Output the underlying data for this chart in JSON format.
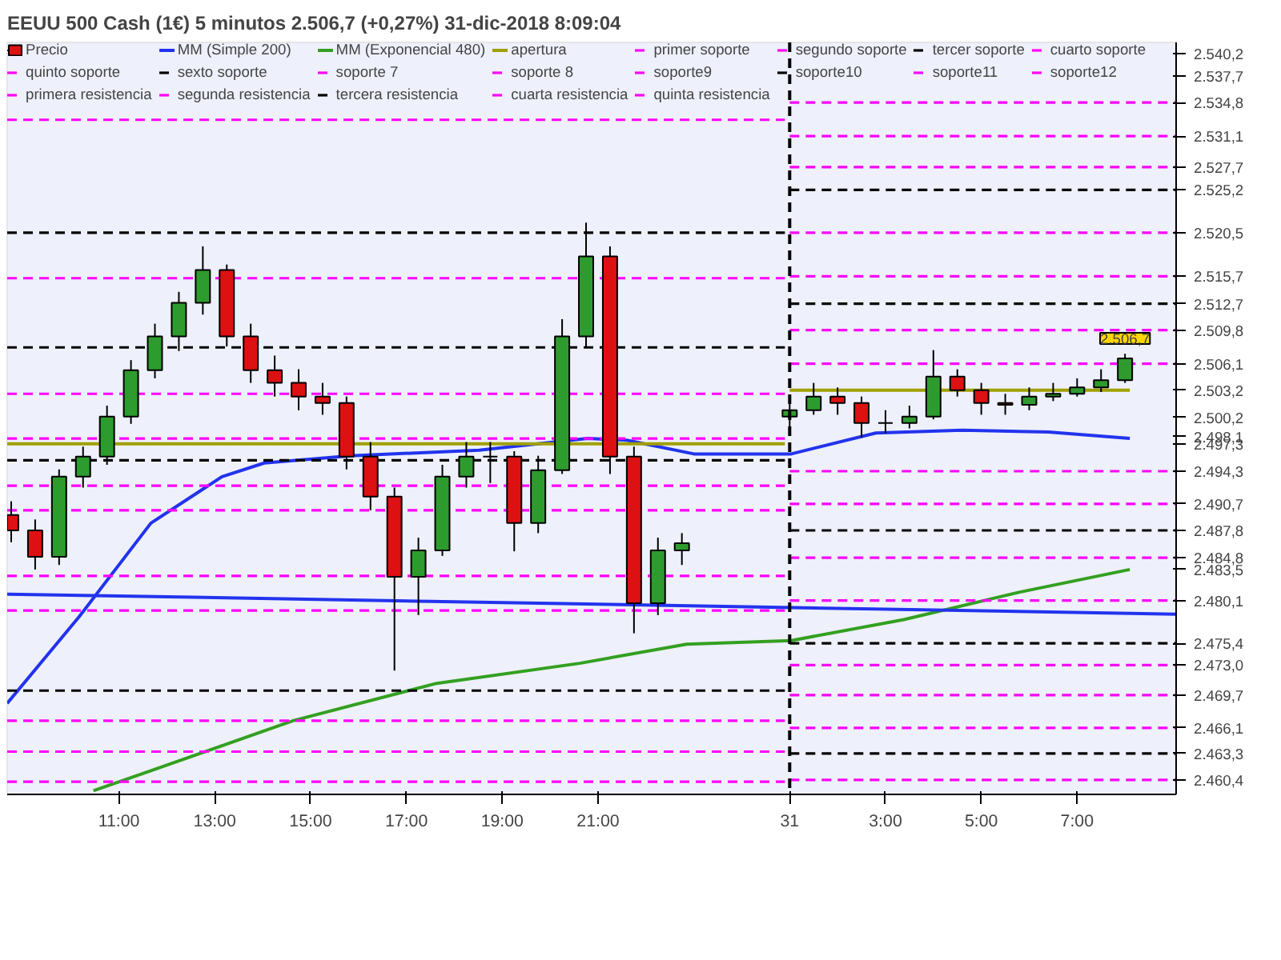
{
  "chart_data": {
    "type": "candlestick",
    "title": "EEUU 500 Cash (1€)   5 minutos   2.506,7 (+0,27%)   31-dic-2018 8:09:04",
    "legend": "top left",
    "grid": false,
    "annotations": [
      {
        "text": "2.506,7",
        "x": "2018-12-31T08:00",
        "y": 2506.7
      }
    ],
    "xlim": [
      "2018-12-30T08:40",
      "2018-12-31T09:04"
    ],
    "ylim": [
      2458.8,
      2541.4
    ],
    "xticks": [
      {
        "value": "2018-12-30T11:00",
        "label": "11:00"
      },
      {
        "value": "2018-12-30T13:00",
        "label": "13:00"
      },
      {
        "value": "2018-12-30T15:00",
        "label": "15:00"
      },
      {
        "value": "2018-12-30T17:00",
        "label": "17:00"
      },
      {
        "value": "2018-12-30T19:00",
        "label": "19:00"
      },
      {
        "value": "2018-12-30T21:00",
        "label": "21:00"
      },
      {
        "value": "2018-12-31T01:00",
        "label": "31"
      },
      {
        "value": "2018-12-31T03:00",
        "label": "3:00"
      },
      {
        "value": "2018-12-31T05:00",
        "label": "5:00"
      },
      {
        "value": "2018-12-31T07:00",
        "label": "7:00"
      }
    ],
    "yticks": [
      {
        "value": 2540.2,
        "label": "2.540,2"
      },
      {
        "value": 2537.7,
        "label": "2.537,7"
      },
      {
        "value": 2534.8,
        "label": "2.534,8"
      },
      {
        "value": 2531.1,
        "label": "2.531,1"
      },
      {
        "value": 2527.7,
        "label": "2.527,7"
      },
      {
        "value": 2525.2,
        "label": "2.525,2"
      },
      {
        "value": 2520.5,
        "label": "2.520,5"
      },
      {
        "value": 2515.7,
        "label": "2.515,7"
      },
      {
        "value": 2512.7,
        "label": "2.512,7"
      },
      {
        "value": 2509.8,
        "label": "2.509,8"
      },
      {
        "value": 2506.1,
        "label": "2.506,1"
      },
      {
        "value": 2503.2,
        "label": "2.503,2"
      },
      {
        "value": 2500.2,
        "label": "2.500,2"
      },
      {
        "value": 2498.1,
        "label": "2.498,1"
      },
      {
        "value": 2497.3,
        "label": "2.497,3"
      },
      {
        "value": 2494.3,
        "label": "2.494,3"
      },
      {
        "value": 2490.7,
        "label": "2.490,7"
      },
      {
        "value": 2487.8,
        "label": "2.487,8"
      },
      {
        "value": 2484.8,
        "label": "2.484,8"
      },
      {
        "value": 2483.5,
        "label": "2.483,5"
      },
      {
        "value": 2480.1,
        "label": "2.480,1"
      },
      {
        "value": 2475.4,
        "label": "2.475,4"
      },
      {
        "value": 2473.0,
        "label": "2.473,0"
      },
      {
        "value": 2469.7,
        "label": "2.469,7"
      },
      {
        "value": 2466.1,
        "label": "2.466,1"
      },
      {
        "value": 2463.3,
        "label": "2.463,3"
      },
      {
        "value": 2460.4,
        "label": "2.460,4"
      }
    ],
    "ref_lines": [
      {
        "axis": "x",
        "value": "2018-12-31T01:00",
        "color": "#000000",
        "line_style": "dashed"
      }
    ],
    "x": [
      "2018-12-30T08:45",
      "2018-12-30T09:15",
      "2018-12-30T09:45",
      "2018-12-30T10:15",
      "2018-12-30T10:45",
      "2018-12-30T11:15",
      "2018-12-30T11:45",
      "2018-12-30T12:15",
      "2018-12-30T12:45",
      "2018-12-30T13:15",
      "2018-12-30T13:45",
      "2018-12-30T14:15",
      "2018-12-30T14:45",
      "2018-12-30T15:15",
      "2018-12-30T15:45",
      "2018-12-30T16:15",
      "2018-12-30T16:45",
      "2018-12-30T17:15",
      "2018-12-30T17:45",
      "2018-12-30T18:15",
      "2018-12-30T18:45",
      "2018-12-30T19:15",
      "2018-12-30T19:45",
      "2018-12-30T20:15",
      "2018-12-30T20:45",
      "2018-12-30T21:15",
      "2018-12-30T21:45",
      "2018-12-30T22:15",
      "2018-12-30T22:45",
      "2018-12-31T01:00",
      "2018-12-31T01:30",
      "2018-12-31T02:00",
      "2018-12-31T02:30",
      "2018-12-31T03:00",
      "2018-12-31T03:30",
      "2018-12-31T04:00",
      "2018-12-31T04:30",
      "2018-12-31T05:00",
      "2018-12-31T05:30",
      "2018-12-31T06:00",
      "2018-12-31T06:30",
      "2018-12-31T07:00",
      "2018-12-31T07:30",
      "2018-12-31T08:00"
    ],
    "series": [
      {
        "name": "Precio",
        "color": "#000000",
        "ohlc": [
          [
            2489.5,
            2491.0,
            2486.5,
            2487.8
          ],
          [
            2487.8,
            2489.0,
            2483.5,
            2484.9
          ],
          [
            2484.9,
            2494.5,
            2484.0,
            2493.7
          ],
          [
            2493.7,
            2497.0,
            2492.5,
            2495.9
          ],
          [
            2495.9,
            2501.5,
            2495.0,
            2500.3
          ],
          [
            2500.3,
            2506.5,
            2499.5,
            2505.4
          ],
          [
            2505.4,
            2510.5,
            2504.5,
            2509.1
          ],
          [
            2509.1,
            2514.0,
            2507.5,
            2512.8
          ],
          [
            2512.8,
            2519.0,
            2511.5,
            2516.4
          ],
          [
            2516.4,
            2517.0,
            2508.0,
            2509.1
          ],
          [
            2509.1,
            2510.5,
            2504.0,
            2505.4
          ],
          [
            2505.4,
            2507.0,
            2502.5,
            2504.0
          ],
          [
            2504.0,
            2505.5,
            2501.0,
            2502.5
          ],
          [
            2502.5,
            2504.0,
            2500.5,
            2501.8
          ],
          [
            2501.8,
            2502.5,
            2494.5,
            2495.9
          ],
          [
            2495.9,
            2497.5,
            2490.0,
            2491.5
          ],
          [
            2491.5,
            2492.5,
            2472.4,
            2482.7
          ],
          [
            2482.7,
            2487.0,
            2478.5,
            2485.6
          ],
          [
            2485.6,
            2495.0,
            2485.0,
            2493.7
          ],
          [
            2493.7,
            2497.5,
            2492.5,
            2495.9
          ],
          [
            2495.9,
            2497.5,
            2493.0,
            2495.9
          ],
          [
            2495.9,
            2496.5,
            2485.5,
            2488.6
          ],
          [
            2488.6,
            2496.0,
            2487.5,
            2494.4
          ],
          [
            2494.4,
            2511.0,
            2494.0,
            2509.1
          ],
          [
            2509.1,
            2521.6,
            2508.0,
            2517.9
          ],
          [
            2517.9,
            2519.0,
            2494.0,
            2495.9
          ],
          [
            2495.9,
            2497.0,
            2476.5,
            2479.8
          ],
          [
            2479.8,
            2487.0,
            2478.5,
            2485.6
          ],
          [
            2485.6,
            2487.5,
            2484.0,
            2486.4
          ],
          [
            2500.3,
            2502.0,
            2499.0,
            2501.0
          ],
          [
            2501.0,
            2504.0,
            2500.5,
            2502.5
          ],
          [
            2502.5,
            2503.5,
            2500.5,
            2501.8
          ],
          [
            2501.8,
            2502.5,
            2498.0,
            2499.6
          ],
          [
            2499.6,
            2501.0,
            2498.5,
            2499.6
          ],
          [
            2499.6,
            2501.5,
            2499.0,
            2500.3
          ],
          [
            2500.3,
            2507.6,
            2500.0,
            2504.7
          ],
          [
            2504.7,
            2505.5,
            2502.5,
            2503.2
          ],
          [
            2503.2,
            2504.0,
            2500.5,
            2501.8
          ],
          [
            2501.8,
            2502.8,
            2500.5,
            2501.6
          ],
          [
            2501.6,
            2503.5,
            2501.0,
            2502.5
          ],
          [
            2502.5,
            2504.0,
            2502.0,
            2502.8
          ],
          [
            2502.8,
            2504.5,
            2502.5,
            2503.5
          ],
          [
            2503.5,
            2505.5,
            2503.0,
            2504.3
          ],
          [
            2504.3,
            2507.2,
            2504.0,
            2506.7
          ]
        ]
      },
      {
        "name": "MM (Simple 200)",
        "type": "line",
        "color": "#2233ee",
        "line_style": "solid",
        "x": [
          "2018-12-30T08:40",
          "2018-12-30T10:10",
          "2018-12-30T11:40",
          "2018-12-30T13:09",
          "2018-12-30T14:02",
          "2018-12-30T15:50",
          "2018-12-30T18:31",
          "2018-12-30T20:47",
          "2018-12-30T21:36",
          "2018-12-30T23:00",
          "2018-12-31T01:02",
          "2018-12-31T02:48",
          "2018-12-31T04:36",
          "2018-12-31T06:24",
          "2018-12-31T08:06"
        ],
        "values": [
          2468.8,
          2478.3,
          2488.6,
          2493.7,
          2495.2,
          2496.0,
          2496.6,
          2497.9,
          2497.7,
          2496.2,
          2496.2,
          2498.5,
          2498.8,
          2498.6,
          2497.9
        ]
      },
      {
        "name": "MM (Exponencial 480)",
        "type": "line",
        "color": "#33a020",
        "line_style": "solid",
        "x": [
          "2018-12-30T10:28",
          "2018-12-30T11:40",
          "2018-12-30T14:38",
          "2018-12-30T17:38",
          "2018-12-30T20:37",
          "2018-12-30T22:51",
          "2018-12-31T01:02",
          "2018-12-31T03:23",
          "2018-12-31T05:47",
          "2018-12-31T08:06"
        ],
        "values": [
          2459.2,
          2461.4,
          2466.9,
          2471.0,
          2473.2,
          2475.3,
          2475.7,
          2478.0,
          2481.0,
          2483.5
        ]
      },
      {
        "name": "apertura",
        "type": "line",
        "color": "#a0a000",
        "line_style": "solid",
        "x": [
          "2018-12-30T08:40",
          "2018-12-31T00:54",
          "2018-12-31T00:57",
          "2018-12-31T01:00",
          "2018-12-31T08:06"
        ],
        "values": [
          2497.3,
          2497.3,
          null,
          2503.2,
          2503.2
        ]
      },
      {
        "name": "primer soporte",
        "type": "line",
        "color": "#ff00ff",
        "line_style": "dashed",
        "x": [
          "2018-12-30T08:40",
          "2018-12-31T00:54",
          "2018-12-31T00:57",
          "2018-12-31T01:00",
          "2018-12-31T09:04"
        ],
        "values": [
          2482.8,
          2482.8,
          null,
          2494.3,
          2494.3
        ]
      },
      {
        "name": "segundo soporte",
        "type": "line",
        "color": "#ff00ff",
        "line_style": "dashed",
        "x": [
          "2018-12-30T08:40",
          "2018-12-31T00:54",
          "2018-12-31T00:57",
          "2018-12-31T01:00",
          "2018-12-31T09:04"
        ],
        "values": [
          2479.0,
          2479.0,
          null,
          2490.7,
          2490.7
        ]
      },
      {
        "name": "tercer soporte",
        "type": "line",
        "color": "#000000",
        "line_style": "dashed",
        "x": [
          "2018-12-30T08:40",
          "2018-12-31T00:54",
          "2018-12-31T00:57",
          "2018-12-31T01:00",
          "2018-12-31T09:04"
        ],
        "values": [
          2470.2,
          2470.2,
          null,
          2487.8,
          2487.8
        ]
      },
      {
        "name": "cuarto soporte",
        "type": "line",
        "color": "#ff00ff",
        "line_style": "dashed",
        "x": [
          "2018-12-30T08:40",
          "2018-12-31T00:54",
          "2018-12-31T00:57",
          "2018-12-31T01:00",
          "2018-12-31T09:04"
        ],
        "values": [
          2466.9,
          2466.9,
          null,
          2484.8,
          2484.8
        ]
      },
      {
        "name": "quinto soporte",
        "type": "line",
        "color": "#ff00ff",
        "line_style": "dashed",
        "x": [
          "2018-12-30T08:40",
          "2018-12-31T00:54",
          "2018-12-31T00:57",
          "2018-12-31T01:00",
          "2018-12-31T09:04"
        ],
        "values": [
          2463.5,
          2463.5,
          null,
          2480.1,
          2480.1
        ]
      },
      {
        "name": "sexto soporte",
        "type": "line",
        "color": "#000000",
        "line_style": "dashed",
        "x": [
          "2018-12-31T01:00",
          "2018-12-31T09:04"
        ],
        "values": [
          2475.4,
          2475.4
        ]
      },
      {
        "name": "soporte 7",
        "type": "line",
        "color": "#ff00ff",
        "line_style": "dashed",
        "x": [
          "2018-12-31T01:00",
          "2018-12-31T09:04"
        ],
        "values": [
          2473.0,
          2473.0
        ]
      },
      {
        "name": "soporte 8",
        "type": "line",
        "color": "#ff00ff",
        "line_style": "dashed",
        "x": [
          "2018-12-31T01:00",
          "2018-12-31T09:04"
        ],
        "values": [
          2469.7,
          2469.7
        ]
      },
      {
        "name": "soporte9",
        "type": "line",
        "color": "#ff00ff",
        "line_style": "dashed",
        "x": [
          "2018-12-31T01:00",
          "2018-12-31T09:04"
        ],
        "values": [
          2466.1,
          2466.1
        ]
      },
      {
        "name": "soporte10",
        "type": "line",
        "color": "#000000",
        "line_style": "dashed",
        "x": [
          "2018-12-31T01:00",
          "2018-12-31T09:04"
        ],
        "values": [
          2463.3,
          2463.3
        ]
      },
      {
        "name": "soporte11",
        "type": "line",
        "color": "#ff00ff",
        "line_style": "dashed",
        "x": [
          "2018-12-31T01:00",
          "2018-12-31T09:04"
        ],
        "values": [
          2460.4,
          2460.4
        ]
      },
      {
        "name": "soporte12",
        "type": "line",
        "color": "#ff00ff",
        "line_style": "dashed",
        "x": [
          "2018-12-30T08:40",
          "2018-12-31T00:54"
        ],
        "values": [
          2460.2,
          2460.2
        ]
      },
      {
        "name": "primera resistencia",
        "type": "line",
        "color": "#ff00ff",
        "line_style": "dashed",
        "x": [
          "2018-12-30T08:40",
          "2018-12-31T00:54",
          "2018-12-31T00:57",
          "2018-12-31T01:00",
          "2018-12-31T09:04"
        ],
        "values": [
          2490.0,
          2490.0,
          null,
          2506.1,
          2506.1
        ]
      },
      {
        "name": "segunda resistencia",
        "type": "line",
        "color": "#ff00ff",
        "line_style": "dashed",
        "x": [
          "2018-12-30T08:40",
          "2018-12-31T00:54",
          "2018-12-31T00:57",
          "2018-12-31T01:00",
          "2018-12-31T09:04"
        ],
        "values": [
          2492.7,
          2492.7,
          null,
          2509.8,
          2509.8
        ]
      },
      {
        "name": "tercera resistencia",
        "type": "line",
        "color": "#000000",
        "line_style": "dashed",
        "x": [
          "2018-12-30T08:40",
          "2018-12-31T00:54",
          "2018-12-31T00:57",
          "2018-12-31T01:00",
          "2018-12-31T09:04"
        ],
        "values": [
          2495.5,
          2495.5,
          null,
          2512.7,
          2512.7
        ]
      },
      {
        "name": "cuarta resistencia",
        "type": "line",
        "color": "#ff00ff",
        "line_style": "dashed",
        "x": [
          "2018-12-30T08:40",
          "2018-12-31T00:54",
          "2018-12-31T00:57",
          "2018-12-31T01:00",
          "2018-12-31T09:04"
        ],
        "values": [
          2497.9,
          2497.9,
          null,
          2515.7,
          2515.7
        ]
      },
      {
        "name": "quinta resistencia",
        "type": "line",
        "color": "#ff00ff",
        "line_style": "dashed",
        "x": [
          "2018-12-30T08:40",
          "2018-12-31T00:54",
          "2018-12-31T00:57",
          "2018-12-31T01:00",
          "2018-12-31T09:04"
        ],
        "values": [
          2502.8,
          2502.8,
          null,
          2520.5,
          2520.5
        ]
      },
      {
        "type": "line",
        "color": "#000000",
        "line_style": "dashed",
        "x": [
          "2018-12-30T08:40",
          "2018-12-31T00:54",
          "2018-12-31T00:57",
          "2018-12-31T01:00",
          "2018-12-31T09:04"
        ],
        "values": [
          2507.9,
          2507.9,
          null,
          2525.2,
          2525.2
        ]
      },
      {
        "type": "line",
        "color": "#ff00ff",
        "line_style": "dashed",
        "x": [
          "2018-12-30T08:40",
          "2018-12-31T00:54",
          "2018-12-31T00:57",
          "2018-12-31T01:00",
          "2018-12-31T09:04"
        ],
        "values": [
          2515.5,
          2515.5,
          null,
          2527.7,
          2527.7
        ]
      },
      {
        "type": "line",
        "color": "#000000",
        "line_style": "dashed",
        "x": [
          "2018-12-30T08:40",
          "2018-12-31T00:54"
        ],
        "values": [
          2520.5,
          2520.5
        ]
      },
      {
        "type": "line",
        "color": "#ff00ff",
        "line_style": "dashed",
        "x": [
          "2018-12-30T08:40",
          "2018-12-31T00:54",
          "2018-12-31T00:57",
          "2018-12-31T01:00",
          "2018-12-31T09:04"
        ],
        "values": [
          2532.9,
          2532.9,
          null,
          2531.1,
          2531.1
        ]
      },
      {
        "type": "line",
        "color": "#ff00ff",
        "line_style": "dashed",
        "x": [
          "2018-12-31T01:00",
          "2018-12-31T09:04"
        ],
        "values": [
          2534.8,
          2534.8
        ]
      },
      {
        "type": "line",
        "color": "#2233ee",
        "line_style": "solid",
        "x": [
          "2018-12-30T08:40",
          "2018-12-31T09:04"
        ],
        "values": [
          2480.8,
          2478.6
        ]
      }
    ]
  }
}
